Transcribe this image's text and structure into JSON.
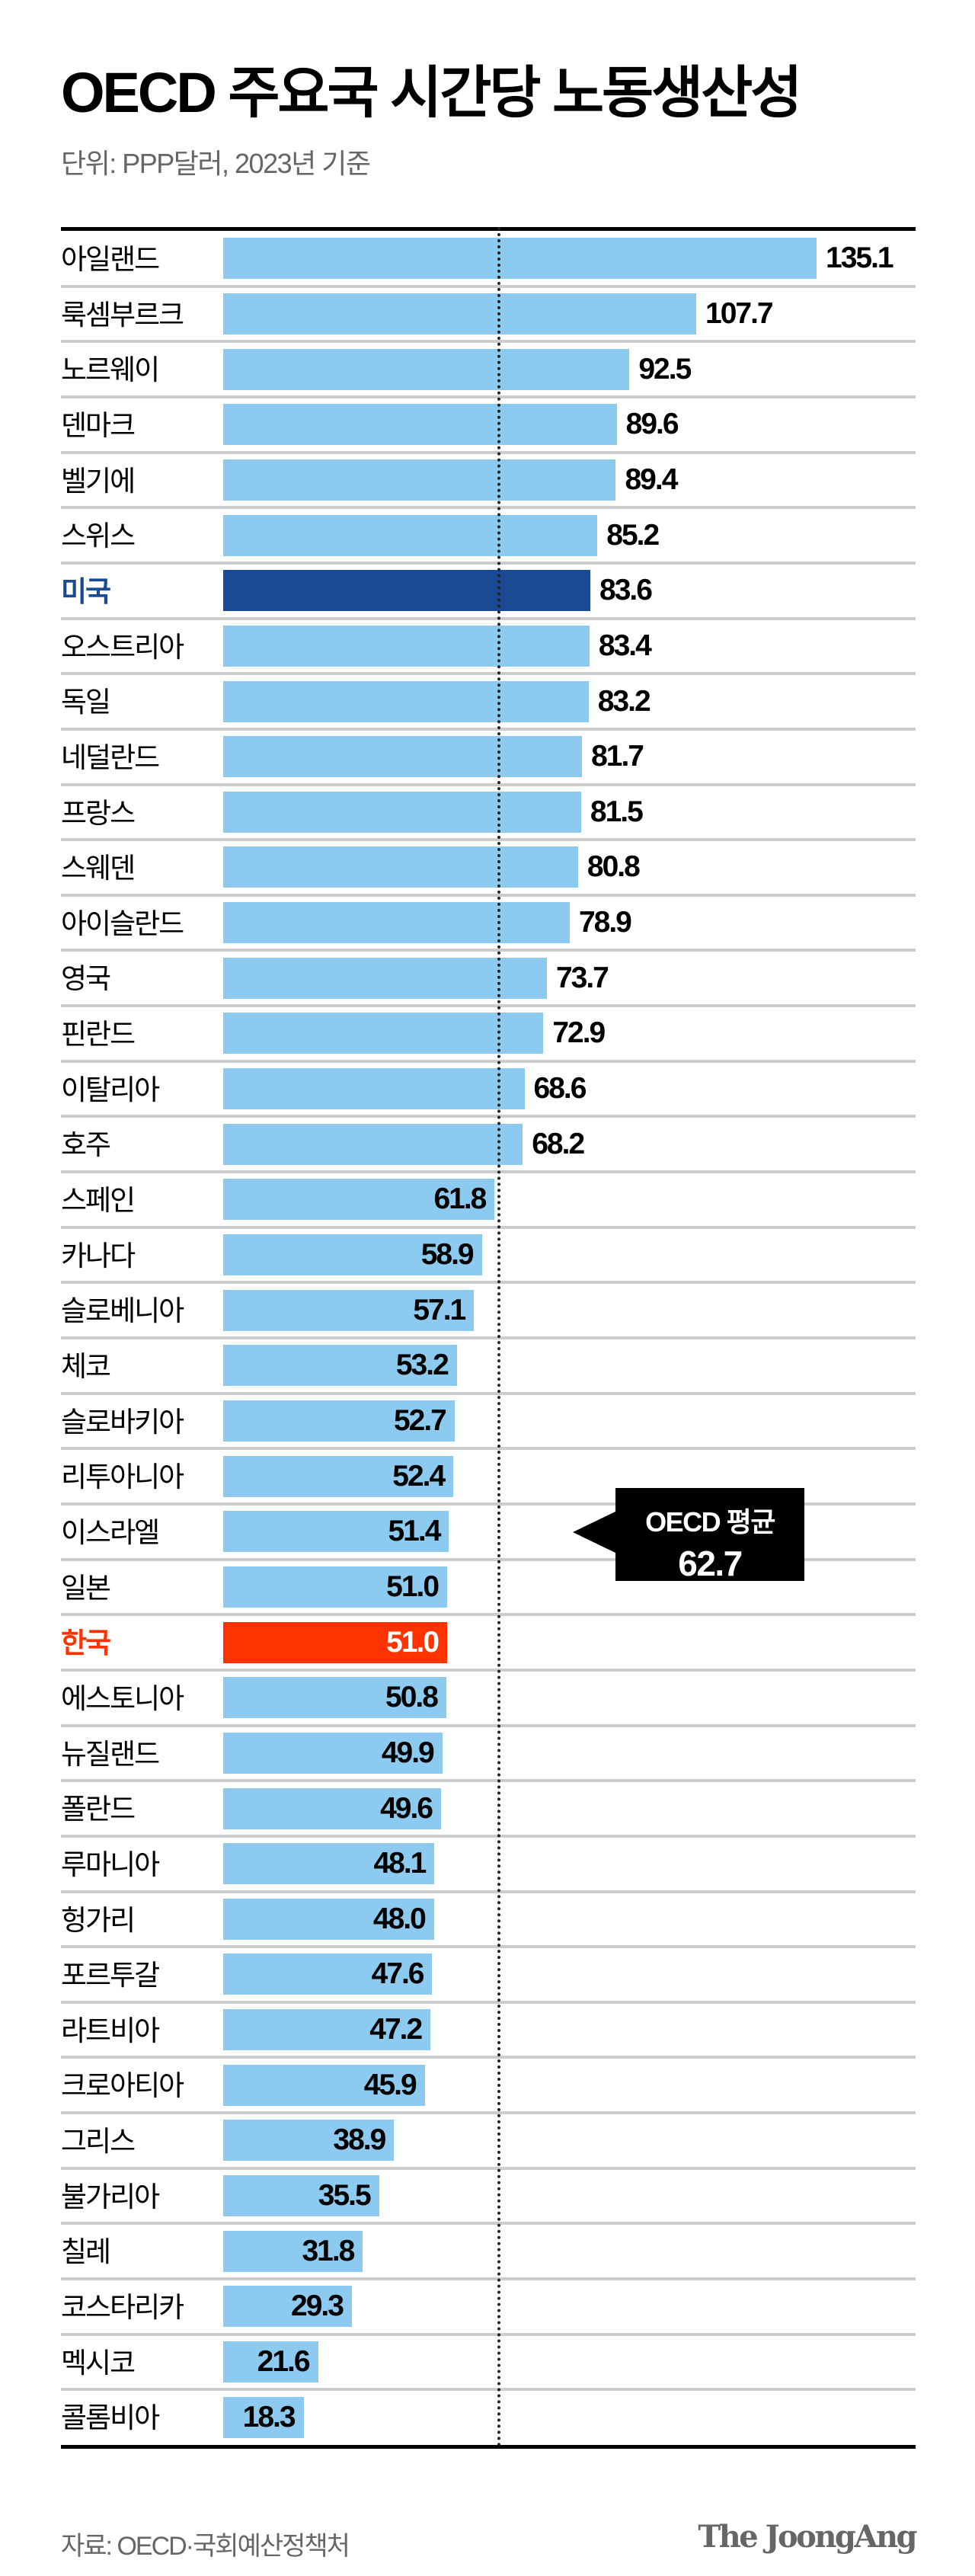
{
  "title": "OECD 주요국 시간당 노동생산성",
  "subtitle": "단위: PPP달러, 2023년 기준",
  "source": "자료: OECD·국회예산정책처",
  "logo": "The JoongAng",
  "colors": {
    "bar": "#8ccbef",
    "usa": "#1a4a94",
    "korea": "#ff3300",
    "callout": "#000000"
  },
  "callout": {
    "label": "OECD 평균",
    "value": "62.7"
  },
  "chart_data": {
    "type": "bar",
    "orientation": "horizontal",
    "title": "OECD 주요국 시간당 노동생산성",
    "subtitle": "단위: PPP달러, 2023년 기준",
    "xlim": [
      0,
      135.1
    ],
    "reference_line": {
      "label": "OECD 평균",
      "value": 62.7
    },
    "highlight": {
      "미국": "#1a4a94",
      "한국": "#ff3300"
    },
    "categories": [
      "아일랜드",
      "룩셈부르크",
      "노르웨이",
      "덴마크",
      "벨기에",
      "스위스",
      "미국",
      "오스트리아",
      "독일",
      "네덜란드",
      "프랑스",
      "스웨덴",
      "아이슬란드",
      "영국",
      "핀란드",
      "이탈리아",
      "호주",
      "스페인",
      "카나다",
      "슬로베니아",
      "체코",
      "슬로바키아",
      "리투아니아",
      "이스라엘",
      "일본",
      "한국",
      "에스토니아",
      "뉴질랜드",
      "폴란드",
      "루마니아",
      "헝가리",
      "포르투갈",
      "라트비아",
      "크로아티아",
      "그리스",
      "불가리아",
      "칠레",
      "코스타리카",
      "멕시코",
      "콜롬비아"
    ],
    "values": [
      135.1,
      107.7,
      92.5,
      89.6,
      89.4,
      85.2,
      83.6,
      83.4,
      83.2,
      81.7,
      81.5,
      80.8,
      78.9,
      73.7,
      72.9,
      68.6,
      68.2,
      61.8,
      58.9,
      57.1,
      53.2,
      52.7,
      52.4,
      51.4,
      51.0,
      51.0,
      50.8,
      49.9,
      49.6,
      48.1,
      48.0,
      47.6,
      47.2,
      45.9,
      38.9,
      35.5,
      31.8,
      29.3,
      21.6,
      18.3
    ],
    "value_labels": [
      "135.1",
      "107.7",
      "92.5",
      "89.6",
      "89.4",
      "85.2",
      "83.6",
      "83.4",
      "83.2",
      "81.7",
      "81.5",
      "80.8",
      "78.9",
      "73.7",
      "72.9",
      "68.6",
      "68.2",
      "61.8",
      "58.9",
      "57.1",
      "53.2",
      "52.7",
      "52.4",
      "51.4",
      "51.0",
      "51.0",
      "50.8",
      "49.9",
      "49.6",
      "48.1",
      "48.0",
      "47.6",
      "47.2",
      "45.9",
      "38.9",
      "35.5",
      "31.8",
      "29.3",
      "21.6",
      "18.3"
    ]
  }
}
